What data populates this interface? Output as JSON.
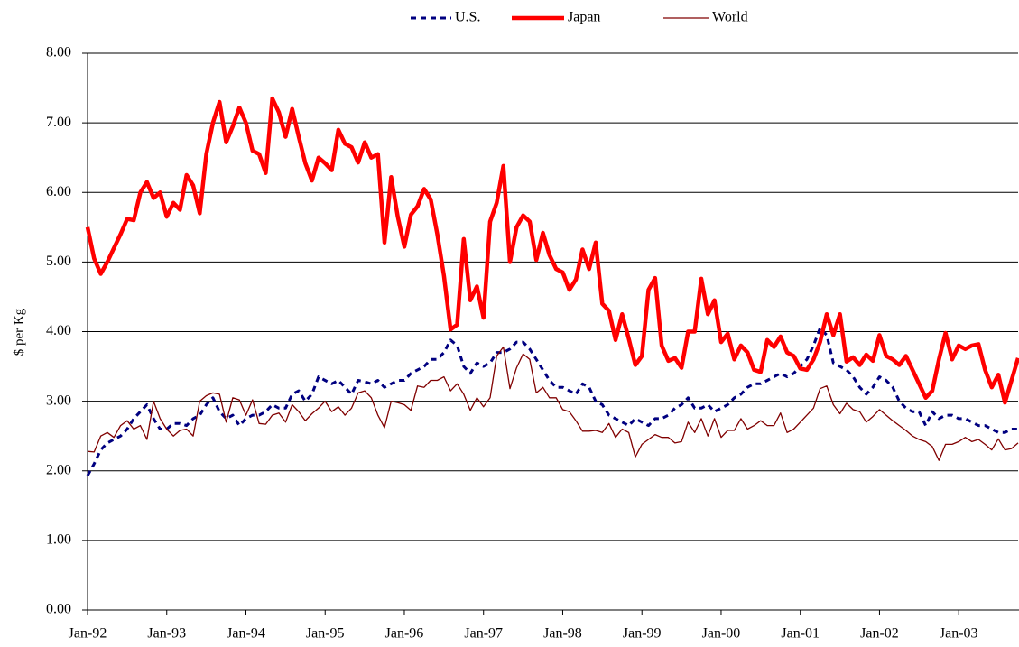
{
  "chart_data": {
    "type": "line",
    "y_label": "$ per Kg",
    "categories": [
      "Jan-92",
      null,
      null,
      null,
      null,
      null,
      null,
      null,
      null,
      null,
      null,
      null,
      "Jan-93",
      null,
      null,
      null,
      null,
      null,
      null,
      null,
      null,
      null,
      null,
      null,
      "Jan-94",
      null,
      null,
      null,
      null,
      null,
      null,
      null,
      null,
      null,
      null,
      null,
      "Jan-95",
      null,
      null,
      null,
      null,
      null,
      null,
      null,
      null,
      null,
      null,
      null,
      "Jan-96",
      null,
      null,
      null,
      null,
      null,
      null,
      null,
      null,
      null,
      null,
      null,
      "Jan-97",
      null,
      null,
      null,
      null,
      null,
      null,
      null,
      null,
      null,
      null,
      null,
      "Jan-98",
      null,
      null,
      null,
      null,
      null,
      null,
      null,
      null,
      null,
      null,
      null,
      "Jan-99",
      null,
      null,
      null,
      null,
      null,
      null,
      null,
      null,
      null,
      null,
      null,
      "Jan-00",
      null,
      null,
      null,
      null,
      null,
      null,
      null,
      null,
      null,
      null,
      null,
      "Jan-01",
      null,
      null,
      null,
      null,
      null,
      null,
      null,
      null,
      null,
      null,
      null,
      "Jan-02",
      null,
      null,
      null,
      null,
      null,
      null,
      null,
      null,
      null,
      null,
      null,
      "Jan-03",
      null,
      null,
      null,
      null,
      null,
      null,
      null,
      null,
      null
    ],
    "series": [
      {
        "name": "U.S.",
        "color": "#000080",
        "width": 3,
        "dash": true,
        "values": [
          1.93,
          2.1,
          2.3,
          2.4,
          2.45,
          2.5,
          2.6,
          2.75,
          2.85,
          2.95,
          2.75,
          2.6,
          2.6,
          2.68,
          2.68,
          2.65,
          2.75,
          2.8,
          2.95,
          3.05,
          2.85,
          2.75,
          2.8,
          2.65,
          2.75,
          2.8,
          2.8,
          2.85,
          2.95,
          2.9,
          2.9,
          3.1,
          3.15,
          3.0,
          3.1,
          3.35,
          3.3,
          3.25,
          3.3,
          3.2,
          3.1,
          3.3,
          3.28,
          3.25,
          3.3,
          3.2,
          3.25,
          3.3,
          3.3,
          3.4,
          3.45,
          3.5,
          3.6,
          3.6,
          3.7,
          3.88,
          3.8,
          3.5,
          3.4,
          3.55,
          3.5,
          3.55,
          3.7,
          3.7,
          3.75,
          3.85,
          3.85,
          3.75,
          3.6,
          3.45,
          3.3,
          3.2,
          3.2,
          3.15,
          3.1,
          3.25,
          3.2,
          3.0,
          2.95,
          2.8,
          2.75,
          2.7,
          2.65,
          2.75,
          2.7,
          2.65,
          2.75,
          2.75,
          2.8,
          2.9,
          2.95,
          3.05,
          2.9,
          2.9,
          2.95,
          2.85,
          2.9,
          2.95,
          3.05,
          3.1,
          3.2,
          3.25,
          3.25,
          3.3,
          3.35,
          3.4,
          3.35,
          3.4,
          3.5,
          3.6,
          3.8,
          4.05,
          3.95,
          3.55,
          3.5,
          3.45,
          3.35,
          3.2,
          3.1,
          3.2,
          3.35,
          3.3,
          3.2,
          3.0,
          2.9,
          2.85,
          2.85,
          2.65,
          2.85,
          2.75,
          2.8,
          2.8,
          2.75,
          2.75,
          2.7,
          2.65,
          2.65,
          2.6,
          2.55,
          2.55,
          2.6,
          2.6
        ]
      },
      {
        "name": "Japan",
        "color": "#ff0000",
        "width": 4.5,
        "dash": false,
        "values": [
          5.5,
          5.05,
          4.83,
          5.0,
          5.2,
          5.4,
          5.62,
          5.6,
          6.0,
          6.15,
          5.92,
          6.0,
          5.65,
          5.85,
          5.75,
          6.25,
          6.1,
          5.7,
          6.55,
          7.0,
          7.3,
          6.72,
          6.95,
          7.22,
          7.0,
          6.6,
          6.55,
          6.28,
          7.35,
          7.15,
          6.8,
          7.2,
          6.8,
          6.42,
          6.17,
          6.5,
          6.42,
          6.32,
          6.9,
          6.7,
          6.65,
          6.43,
          6.72,
          6.5,
          6.55,
          5.28,
          6.22,
          5.65,
          5.22,
          5.68,
          5.8,
          6.05,
          5.9,
          5.4,
          4.8,
          4.03,
          4.1,
          5.33,
          4.45,
          4.65,
          4.2,
          5.58,
          5.85,
          6.38,
          5.0,
          5.5,
          5.67,
          5.58,
          5.03,
          5.42,
          5.1,
          4.9,
          4.85,
          4.6,
          4.75,
          5.18,
          4.9,
          5.28,
          4.4,
          4.3,
          3.88,
          4.25,
          3.9,
          3.52,
          3.65,
          4.6,
          4.77,
          3.8,
          3.58,
          3.62,
          3.48,
          4.0,
          4.0,
          4.76,
          4.25,
          4.45,
          3.85,
          3.97,
          3.6,
          3.8,
          3.7,
          3.45,
          3.42,
          3.88,
          3.78,
          3.93,
          3.7,
          3.65,
          3.47,
          3.45,
          3.6,
          3.85,
          4.25,
          3.95,
          4.25,
          3.57,
          3.63,
          3.52,
          3.67,
          3.58,
          3.95,
          3.65,
          3.6,
          3.52,
          3.65,
          3.45,
          3.25,
          3.05,
          3.15,
          3.6,
          3.98,
          3.6,
          3.8,
          3.75,
          3.8,
          3.82,
          3.45,
          3.2,
          3.38,
          2.98,
          3.3,
          3.62
        ]
      },
      {
        "name": "World",
        "color": "#800000",
        "width": 1.3,
        "dash": false,
        "values": [
          2.28,
          2.27,
          2.5,
          2.55,
          2.48,
          2.65,
          2.72,
          2.6,
          2.65,
          2.45,
          3.0,
          2.75,
          2.6,
          2.5,
          2.58,
          2.6,
          2.5,
          3.0,
          3.08,
          3.12,
          3.1,
          2.7,
          3.05,
          3.02,
          2.8,
          3.02,
          2.68,
          2.67,
          2.8,
          2.83,
          2.7,
          2.95,
          2.85,
          2.72,
          2.82,
          2.9,
          3.0,
          2.85,
          2.92,
          2.8,
          2.9,
          3.12,
          3.15,
          3.05,
          2.8,
          2.62,
          3.0,
          2.98,
          2.95,
          2.87,
          3.22,
          3.2,
          3.3,
          3.3,
          3.35,
          3.15,
          3.25,
          3.1,
          2.87,
          3.05,
          2.92,
          3.05,
          3.65,
          3.78,
          3.18,
          3.48,
          3.68,
          3.6,
          3.12,
          3.2,
          3.05,
          3.05,
          2.88,
          2.85,
          2.72,
          2.57,
          2.57,
          2.58,
          2.55,
          2.68,
          2.48,
          2.6,
          2.55,
          2.2,
          2.38,
          2.45,
          2.52,
          2.48,
          2.48,
          2.4,
          2.42,
          2.7,
          2.55,
          2.75,
          2.5,
          2.75,
          2.48,
          2.58,
          2.58,
          2.75,
          2.6,
          2.65,
          2.72,
          2.65,
          2.65,
          2.83,
          2.55,
          2.6,
          2.7,
          2.8,
          2.9,
          3.18,
          3.22,
          2.95,
          2.82,
          2.97,
          2.88,
          2.85,
          2.7,
          2.78,
          2.88,
          2.8,
          2.72,
          2.65,
          2.58,
          2.5,
          2.45,
          2.42,
          2.35,
          2.15,
          2.38,
          2.38,
          2.42,
          2.48,
          2.42,
          2.45,
          2.38,
          2.3,
          2.46,
          2.3,
          2.32,
          2.4
        ]
      }
    ],
    "ylim": [
      0,
      8
    ],
    "yticks": [
      {
        "value": 0,
        "label": "0.00"
      },
      {
        "value": 1,
        "label": "1.00"
      },
      {
        "value": 2,
        "label": "2.00"
      },
      {
        "value": 3,
        "label": "3.00"
      },
      {
        "value": 4,
        "label": "4.00"
      },
      {
        "value": 5,
        "label": "5.00"
      },
      {
        "value": 6,
        "label": "6.00"
      },
      {
        "value": 7,
        "label": "7.00"
      },
      {
        "value": 8,
        "label": "8.00"
      }
    ],
    "grid": true
  }
}
